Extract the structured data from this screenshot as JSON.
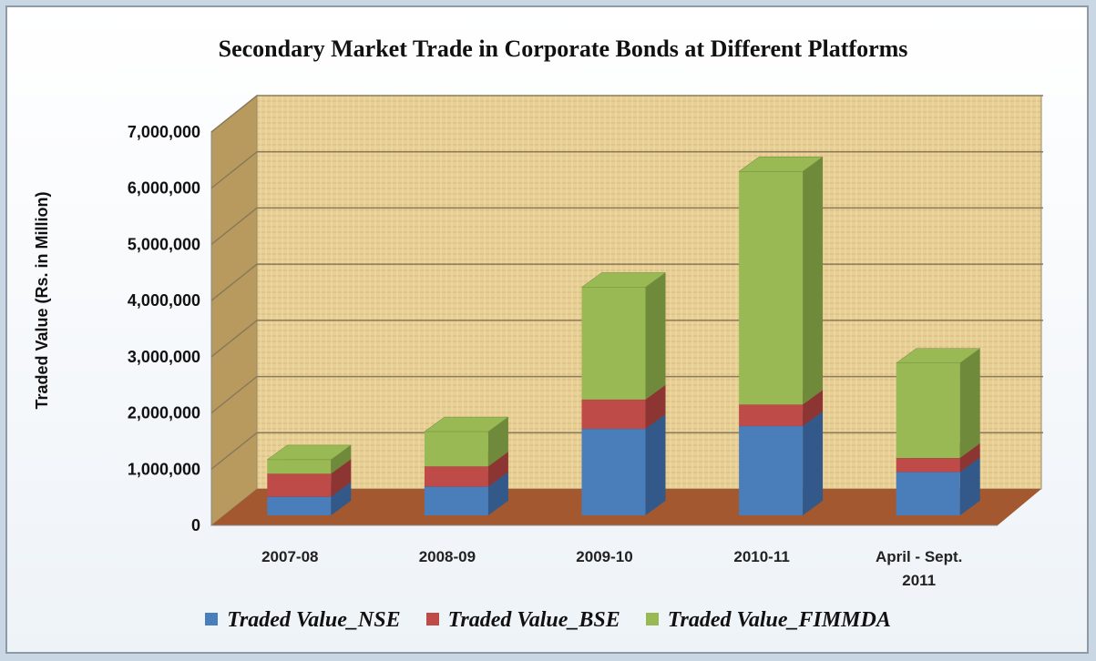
{
  "chart_data": {
    "type": "bar3d_stacked",
    "title": "Secondary Market Trade in Corporate Bonds at Different Platforms",
    "y_label": "Traded Value (Rs. in Million)",
    "categories": [
      "2007-08",
      "2008-09",
      "2009-10",
      "2010-11",
      "April - Sept. 2011"
    ],
    "series": [
      {
        "name": "Traded Value_NSE",
        "color": "#4a7ebb",
        "side": "#33598a",
        "values": [
          330000,
          510000,
          1540000,
          1590000,
          770000
        ]
      },
      {
        "name": "Traded Value_BSE",
        "color": "#be4b48",
        "side": "#8c3532",
        "values": [
          410000,
          360000,
          520000,
          380000,
          250000
        ]
      },
      {
        "name": "Traded Value_FIMMDA",
        "color": "#98b954",
        "side": "#6f8a3b",
        "values": [
          250000,
          620000,
          2000000,
          4150000,
          1690000
        ]
      }
    ],
    "ylim": [
      0,
      7000000
    ],
    "yticks": [
      0,
      {
        "value": 1000000,
        "label": "1,000,000"
      },
      {
        "value": 2000000,
        "label": "2,000,000"
      },
      {
        "value": 3000000,
        "label": "3,000,000"
      },
      {
        "value": 4000000,
        "label": "4,000,000"
      },
      {
        "value": 5000000,
        "label": "5,000,000"
      },
      {
        "value": 6000000,
        "label": "6,000,000"
      },
      {
        "value": 7000000,
        "label": "7,000,000"
      }
    ],
    "grid": true
  }
}
